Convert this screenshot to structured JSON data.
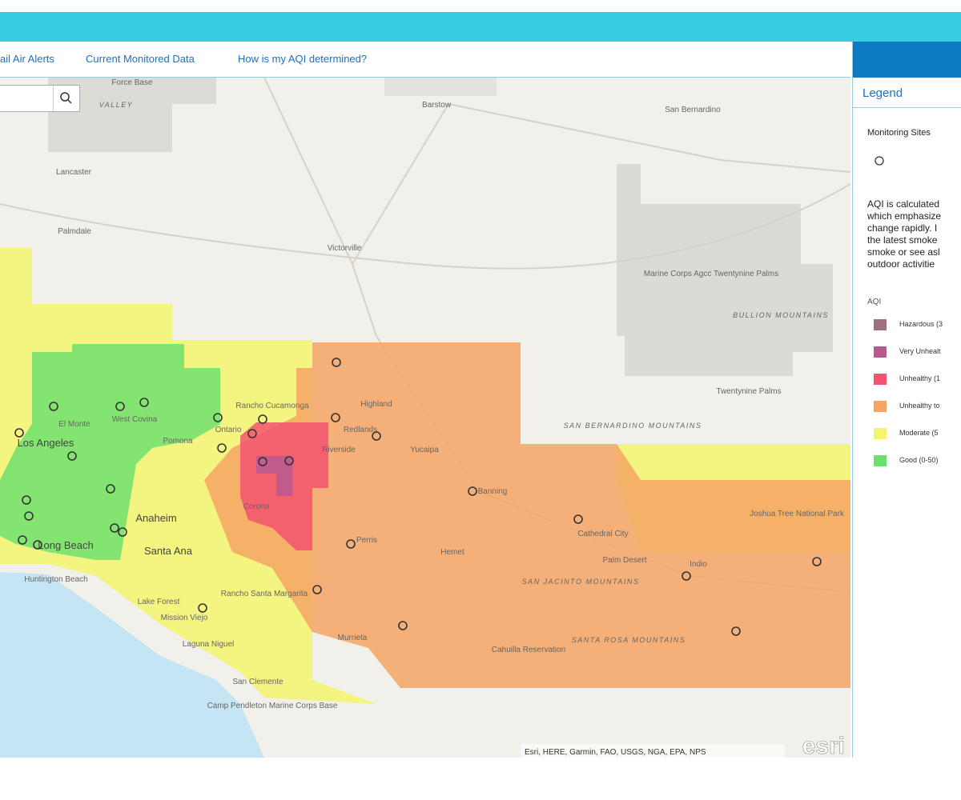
{
  "nav": {
    "links": [
      "ail Air Alerts",
      "Current Monitored Data",
      "How is my AQI determined?"
    ]
  },
  "map": {
    "labels": [
      "Force Base",
      "VALLEY",
      "Barstow",
      "San Bernardino",
      "Lancaster",
      "Palmdale",
      "Victorville",
      "Twentynine Palms",
      "BULLION MOUNTAINS",
      "El Monte",
      "West Covina",
      "Los Angeles",
      "Pomona",
      "Ontario",
      "Rancho Cucamonga",
      "Highland",
      "Redlands",
      "Yucaipa",
      "Riverside",
      "Corona",
      "Banning",
      "SAN BERNARDINO MOUNTAINS",
      "Anaheim",
      "Long Beach",
      "Santa Ana",
      "Huntington Beach",
      "Perris",
      "Hemet",
      "Cathedral City",
      "Palm Desert",
      "Indio",
      "SAN JACINTO MOUNTAINS",
      "Lake Forest",
      "Mission Viejo",
      "Laguna Niguel",
      "Rancho Santa Margarita",
      "Murrieta",
      "Cahuilla Reservation",
      "SANTA ROSA MOUNTAINS",
      "San Clemente",
      "Camp Pendleton Marine Corps Base",
      "Joshua Tree National Park",
      "Marine Corps Agcc Twentynine Palms"
    ],
    "attribution": "Esri, HERE, Garmin, FAO, USGS, NGA, EPA, NPS",
    "logo": "esri"
  },
  "legend": {
    "title": "Legend",
    "sites_title": "Monitoring Sites",
    "description": [
      "AQI is calculated",
      "which emphasize",
      "change rapidly. I",
      "the latest smoke",
      "smoke or see asl",
      "outdoor activitie"
    ],
    "aqi_title": "AQI",
    "items": [
      {
        "label": "Hazardous (3",
        "color": "#a07080"
      },
      {
        "label": "Very Unhealt",
        "color": "#b85a92"
      },
      {
        "label": "Unhealthy (1",
        "color": "#f25470"
      },
      {
        "label": "Unhealthy to",
        "color": "#f5a464"
      },
      {
        "label": "Moderate (5",
        "color": "#f4f46e"
      },
      {
        "label": "Good (0-50)",
        "color": "#6ee06e"
      }
    ]
  }
}
